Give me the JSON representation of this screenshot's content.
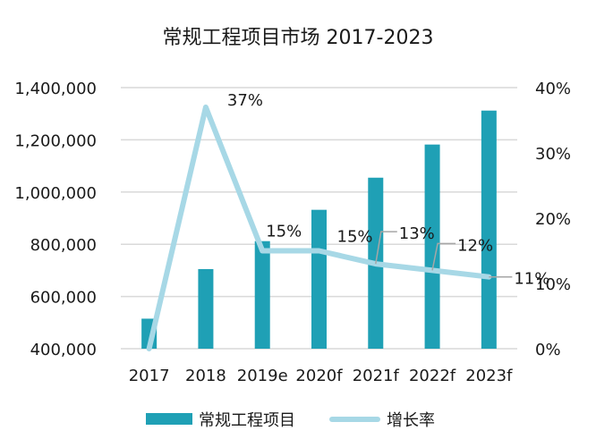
{
  "chart_data": {
    "type": "bar",
    "title": "常规工程项目市场 2017-2023",
    "categories": [
      "2017",
      "2018",
      "2019e",
      "2020f",
      "2021f",
      "2022f",
      "2023f"
    ],
    "series": [
      {
        "name": "常规工程项目",
        "type": "bar",
        "axis": "left",
        "values": [
          515000,
          705000,
          812000,
          932000,
          1055000,
          1182000,
          1312000
        ]
      },
      {
        "name": "增长率",
        "type": "line",
        "axis": "right",
        "values": [
          0,
          37,
          15,
          15,
          13,
          12,
          11
        ],
        "labels": [
          "",
          "37%",
          "15%",
          "15%",
          "13%",
          "12%",
          "11%"
        ]
      }
    ],
    "y_left": {
      "min": 400000,
      "max": 1400000,
      "ticks": [
        400000,
        600000,
        800000,
        1000000,
        1200000,
        1400000
      ],
      "tick_labels": [
        "400,000",
        "600,000",
        "800,000",
        "1,000,000",
        "1,200,000",
        "1,400,000"
      ]
    },
    "y_right": {
      "min": 0,
      "max": 40,
      "ticks": [
        0,
        10,
        20,
        30,
        40
      ],
      "tick_labels": [
        "0%",
        "10%",
        "20%",
        "30%",
        "40%"
      ]
    },
    "grid": true,
    "legend_position": "bottom",
    "colors": {
      "bar": "#1fa0b5",
      "line": "#a7d8e6",
      "grid": "#d9d9d9",
      "leader": "#a6a6a6"
    }
  }
}
